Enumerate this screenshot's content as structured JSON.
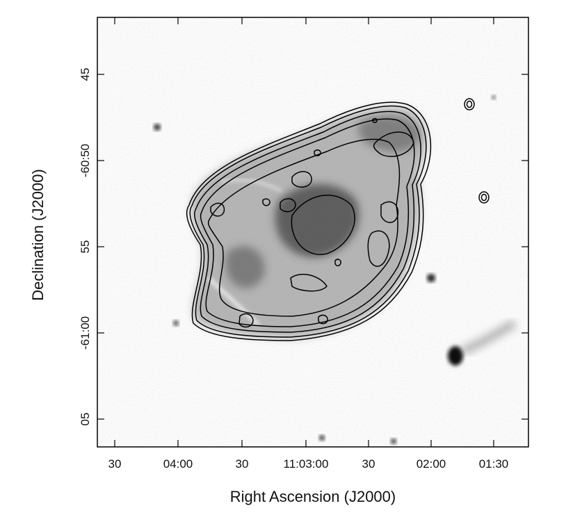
{
  "chart_data": {
    "type": "heatmap",
    "title": "",
    "xlabel": "Right Ascension (J2000)",
    "ylabel": "Declination (J2000)",
    "colormap": "inverted grayscale",
    "overlay": "contours",
    "x_ticks": [
      "30",
      "04:00",
      "30",
      "11:03:00",
      "30",
      "02:00",
      "01:30"
    ],
    "y_ticks": [
      "45",
      "-60:50",
      "55",
      "-61:00",
      "05"
    ],
    "colors": {
      "frame": "#000000",
      "contour": "#000000",
      "background": "#ffffff"
    }
  }
}
